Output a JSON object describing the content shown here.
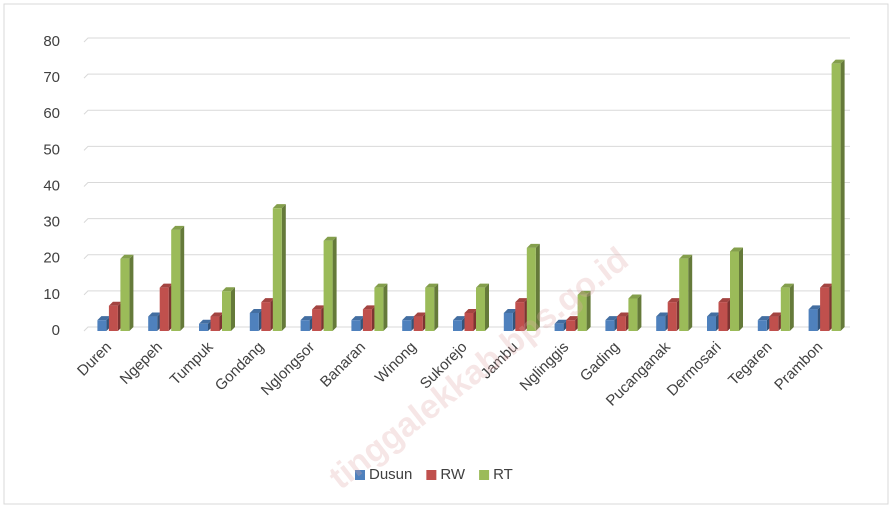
{
  "chart_data": {
    "type": "bar",
    "categories": [
      "Duren",
      "Ngepeh",
      "Tumpuk",
      "Gondang",
      "Nglongsor",
      "Banaran",
      "Winong",
      "Sukorejo",
      "Jambu",
      "Nglinggis",
      "Gading",
      "Pucanganak",
      "Dermosari",
      "Tegaren",
      "Prambon"
    ],
    "series": [
      {
        "name": "Dusun",
        "color": "#4f81bd",
        "values": [
          3,
          4,
          2,
          5,
          3,
          3,
          3,
          3,
          5,
          2,
          3,
          4,
          4,
          3,
          6
        ]
      },
      {
        "name": "RW",
        "color": "#c0504d",
        "values": [
          7,
          12,
          4,
          8,
          6,
          6,
          4,
          5,
          8,
          3,
          4,
          8,
          8,
          4,
          12
        ]
      },
      {
        "name": "RT",
        "color": "#9bbb59",
        "values": [
          20,
          28,
          11,
          34,
          25,
          12,
          12,
          12,
          23,
          10,
          9,
          20,
          22,
          12,
          74
        ]
      }
    ],
    "ylim": [
      0,
      80
    ],
    "yticks": [
      0,
      10,
      20,
      30,
      40,
      50,
      60,
      70,
      80
    ],
    "grid": true,
    "legend": "bottom",
    "watermark": "tinggalekkab.bps.go.id"
  }
}
